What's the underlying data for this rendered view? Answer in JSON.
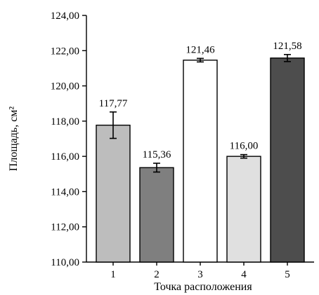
{
  "chart_data": {
    "type": "bar",
    "title": "",
    "xlabel": "Точка расположения",
    "ylabel": "Площадь, см²",
    "ylim": [
      110,
      124
    ],
    "yticks": [
      "110,00",
      "112,00",
      "114,00",
      "116,00",
      "118,00",
      "120,00",
      "122,00",
      "124,00"
    ],
    "ytick_values": [
      110,
      112,
      114,
      116,
      118,
      120,
      122,
      124
    ],
    "categories": [
      "1",
      "2",
      "3",
      "4",
      "5"
    ],
    "values": [
      117.77,
      115.36,
      121.46,
      116.0,
      121.58
    ],
    "value_labels": [
      "117,77",
      "115,36",
      "121,46",
      "116,00",
      "121,58"
    ],
    "errors": [
      0.75,
      0.25,
      0.1,
      0.1,
      0.2
    ],
    "bar_colors": [
      "#bdbdbd",
      "#7f7f7f",
      "#ffffff",
      "#e0e0e0",
      "#4d4d4d"
    ],
    "grid": false,
    "legend": "none"
  }
}
